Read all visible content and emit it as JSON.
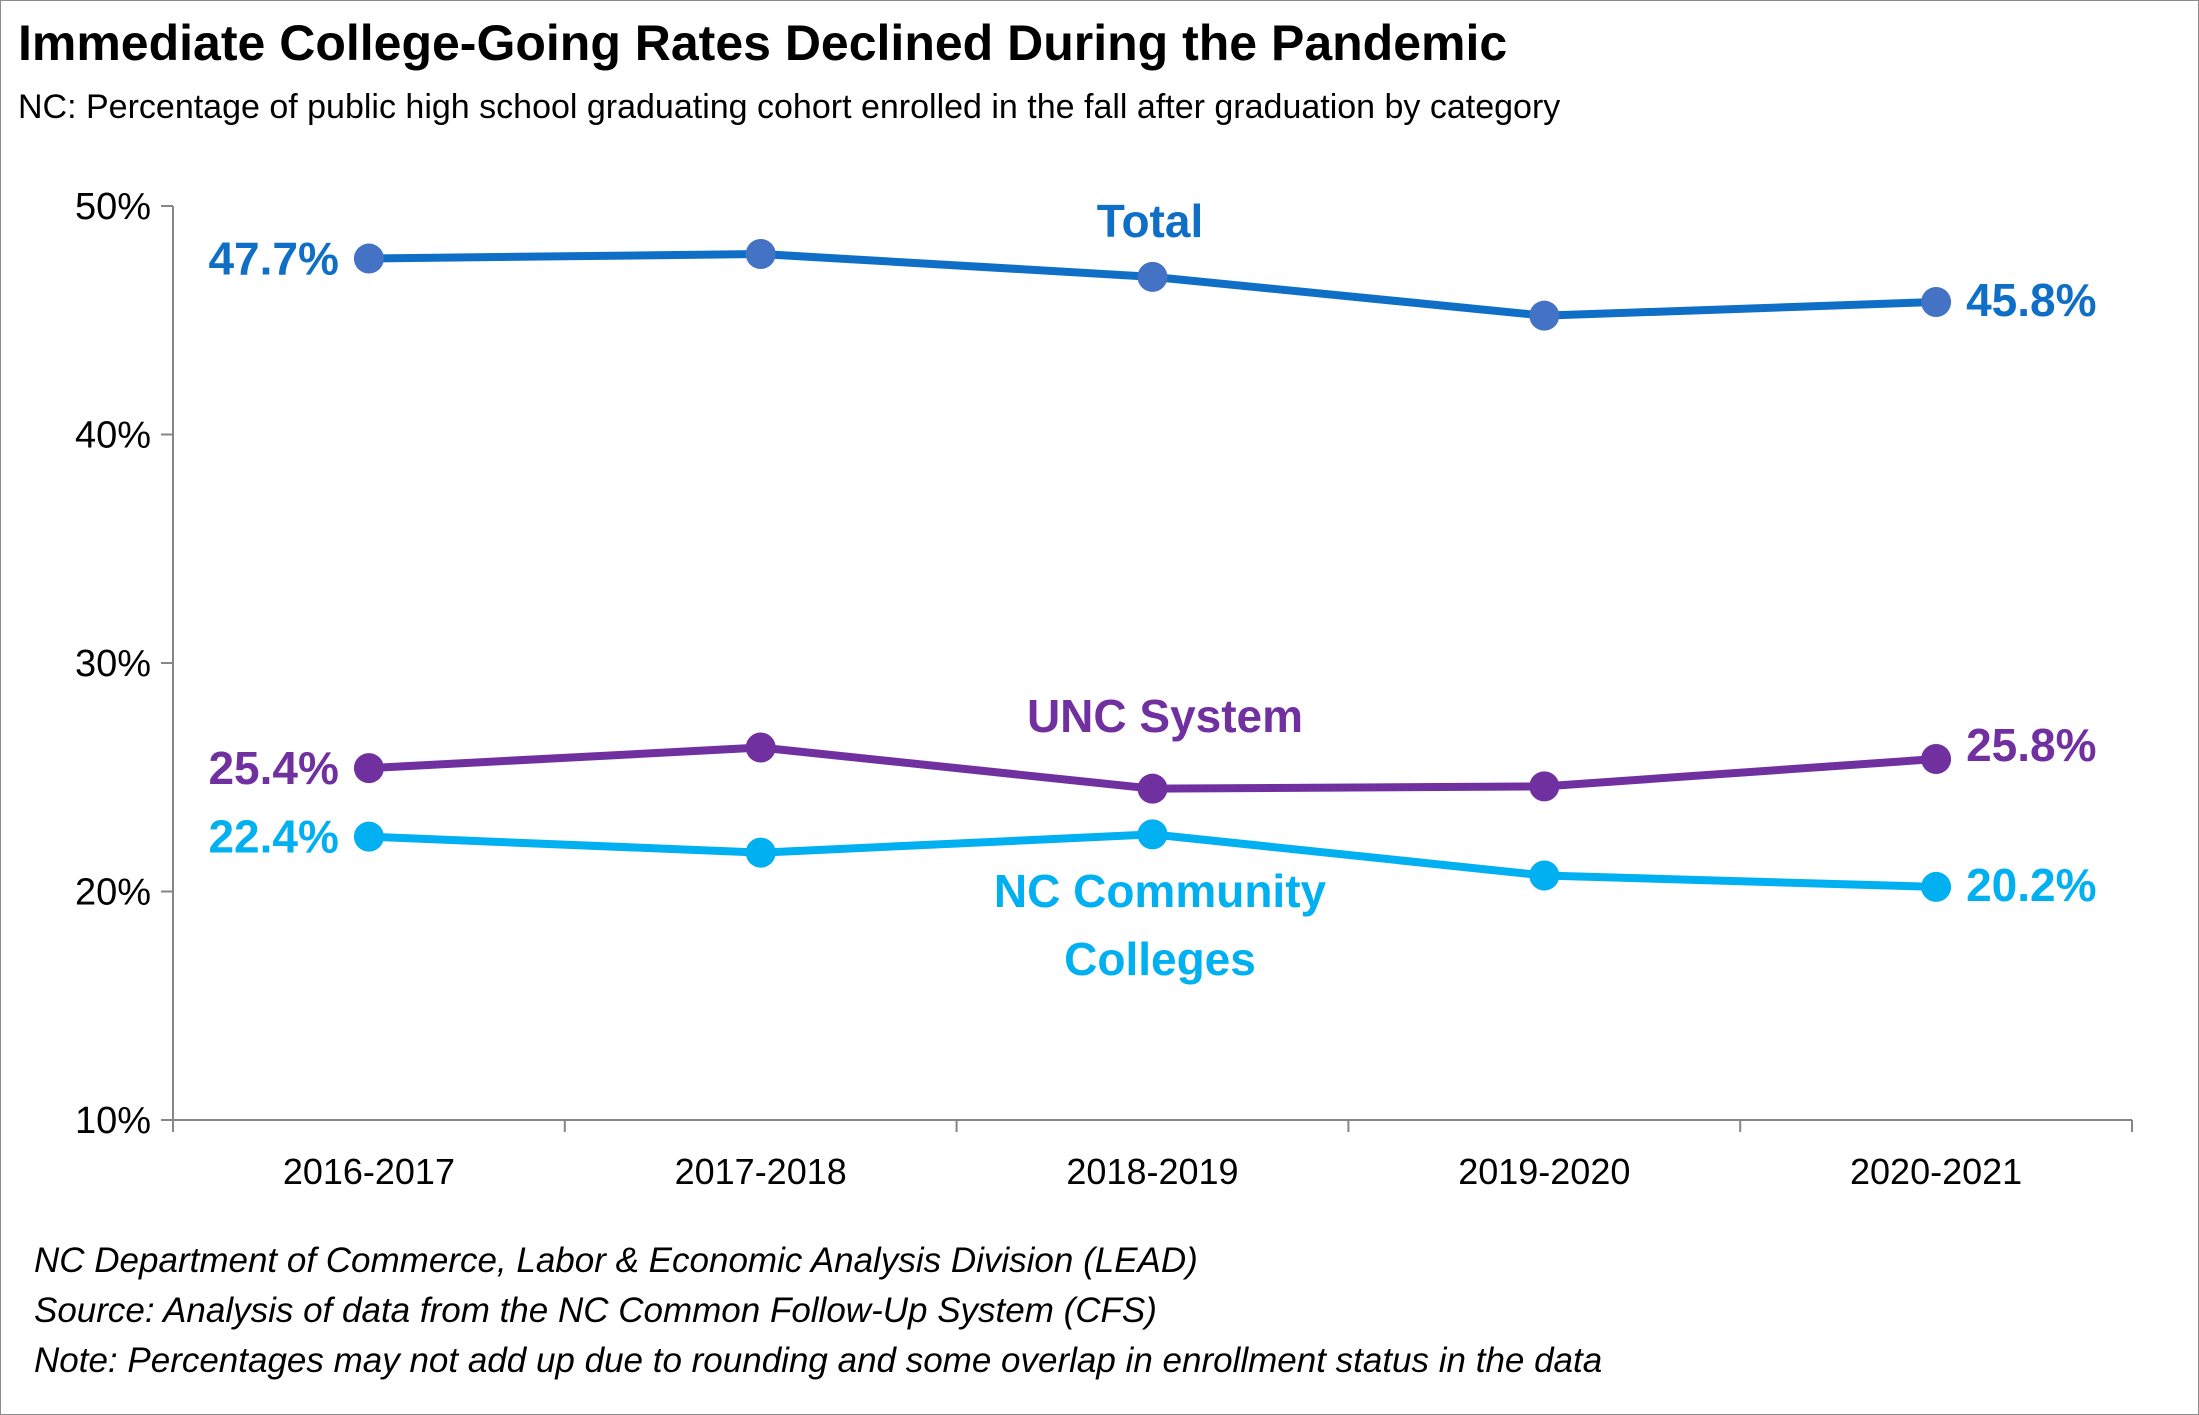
{
  "title": "Immediate College-Going Rates Declined During the Pandemic",
  "subtitle": "NC: Percentage of public high school graduating cohort enrolled in the fall after graduation by category",
  "notes": [
    "NC Department of Commerce, Labor & Economic Analysis Division (LEAD)",
    "Source: Analysis of data from the NC Common Follow-Up System (CFS)",
    "Note: Percentages may not add up due to rounding and some overlap in enrollment status in the data"
  ],
  "chart_data": {
    "type": "line",
    "title": "Immediate College-Going Rates Declined During the Pandemic",
    "xlabel": "",
    "ylabel": "",
    "ylim": [
      10,
      50
    ],
    "yticks": [
      10,
      20,
      30,
      40,
      50
    ],
    "ytick_labels": [
      "10%",
      "20%",
      "30%",
      "40%",
      "50%"
    ],
    "categories": [
      "2016-2017",
      "2017-2018",
      "2018-2019",
      "2019-2020",
      "2020-2021"
    ],
    "series": [
      {
        "name": "Total",
        "label_lines": [
          "Total"
        ],
        "color": "#0F6FC6",
        "marker_color": "#4472C4",
        "values": [
          47.7,
          47.9,
          46.9,
          45.2,
          45.8
        ],
        "first_label": "47.7%",
        "last_label": "45.8%"
      },
      {
        "name": "UNC System",
        "label_lines": [
          "UNC System"
        ],
        "color": "#7030A0",
        "marker_color": "#7030A0",
        "values": [
          25.4,
          26.3,
          24.5,
          24.6,
          25.8
        ],
        "first_label": "25.4%",
        "last_label": "25.8%"
      },
      {
        "name": "NC Community Colleges",
        "label_lines": [
          "NC Community",
          "Colleges"
        ],
        "color": "#00B0F0",
        "marker_color": "#00B0F0",
        "values": [
          22.4,
          21.7,
          22.5,
          20.7,
          20.2
        ],
        "first_label": "22.4%",
        "last_label": "20.2%"
      }
    ],
    "grid": false,
    "legend": "inline labels"
  }
}
